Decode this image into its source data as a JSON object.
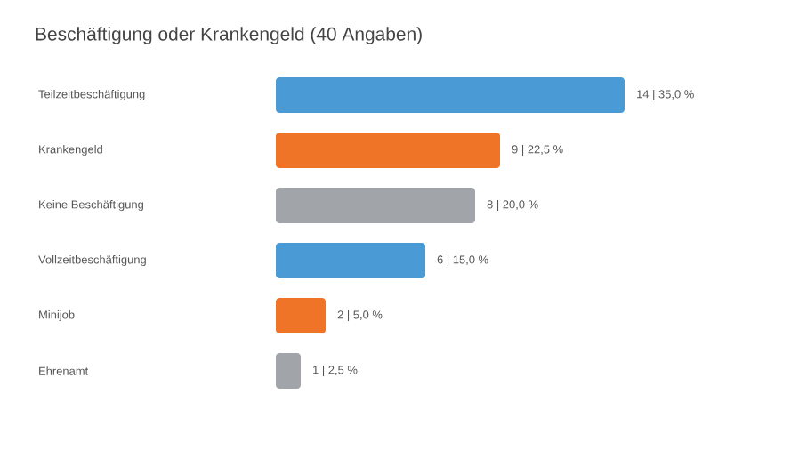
{
  "chart_data": {
    "type": "bar",
    "orientation": "horizontal",
    "title": "Beschäftigung oder Krankengeld (40 Angaben)",
    "categories": [
      "Teilzeitbeschäftigung",
      "Krankengeld",
      "Keine Beschäftigung",
      "Vollzeitbeschäftigung",
      "Minijob",
      "Ehrenamt"
    ],
    "values": [
      14,
      9,
      8,
      6,
      2,
      1
    ],
    "colors": [
      "#4a9bd5",
      "#f07427",
      "#a1a5aa",
      "#4a9bd5",
      "#f07427",
      "#a1a5aa"
    ],
    "value_labels": [
      "14 | 35,0 %",
      "9 | 22,5 %",
      "8 | 20,0 %",
      "6 | 15,0 %",
      "2 | 5,0 %",
      "1 | 2,5 %"
    ]
  }
}
